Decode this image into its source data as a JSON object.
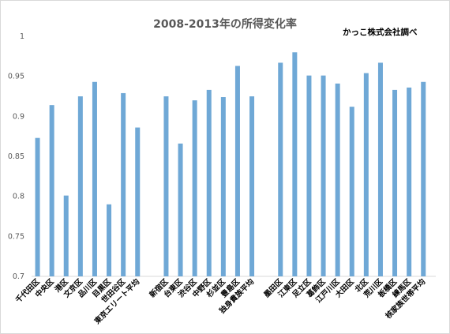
{
  "chart_data": {
    "type": "bar",
    "title": "2008-2013年の所得変化率",
    "annotation": "かっこ株式会社調べ",
    "xlabel": "",
    "ylabel": "",
    "ylim": [
      0.7,
      1.0
    ],
    "yticks": [
      "0.7",
      "0.75",
      "0.8",
      "0.85",
      "0.9",
      "0.95",
      "1"
    ],
    "grid": false,
    "color": "#6fa8d6",
    "groups": [
      {
        "categories": [
          "千代田区",
          "中央区",
          "港区",
          "文京区",
          "品川区",
          "目黒区",
          "世田谷区",
          "東京エリート平均"
        ],
        "values": [
          0.873,
          0.914,
          0.801,
          0.925,
          0.943,
          0.79,
          0.929,
          0.886
        ]
      },
      {
        "categories": [
          "新宿区",
          "台東区",
          "渋谷区",
          "中野区",
          "杉並区",
          "豊島区",
          "独身貴族平均"
        ],
        "values": [
          0.925,
          0.866,
          0.92,
          0.933,
          0.924,
          0.963,
          0.925
        ]
      },
      {
        "categories": [
          "墨田区",
          "江東区",
          "足立区",
          "葛飾区",
          "江戸川区",
          "大田区",
          "北区",
          "荒川区",
          "板橋区",
          "練馬区",
          "核家族世帯平均"
        ],
        "values": [
          0.967,
          0.98,
          0.951,
          0.951,
          0.941,
          0.912,
          0.954,
          0.967,
          0.933,
          0.936,
          0.943
        ]
      }
    ]
  }
}
